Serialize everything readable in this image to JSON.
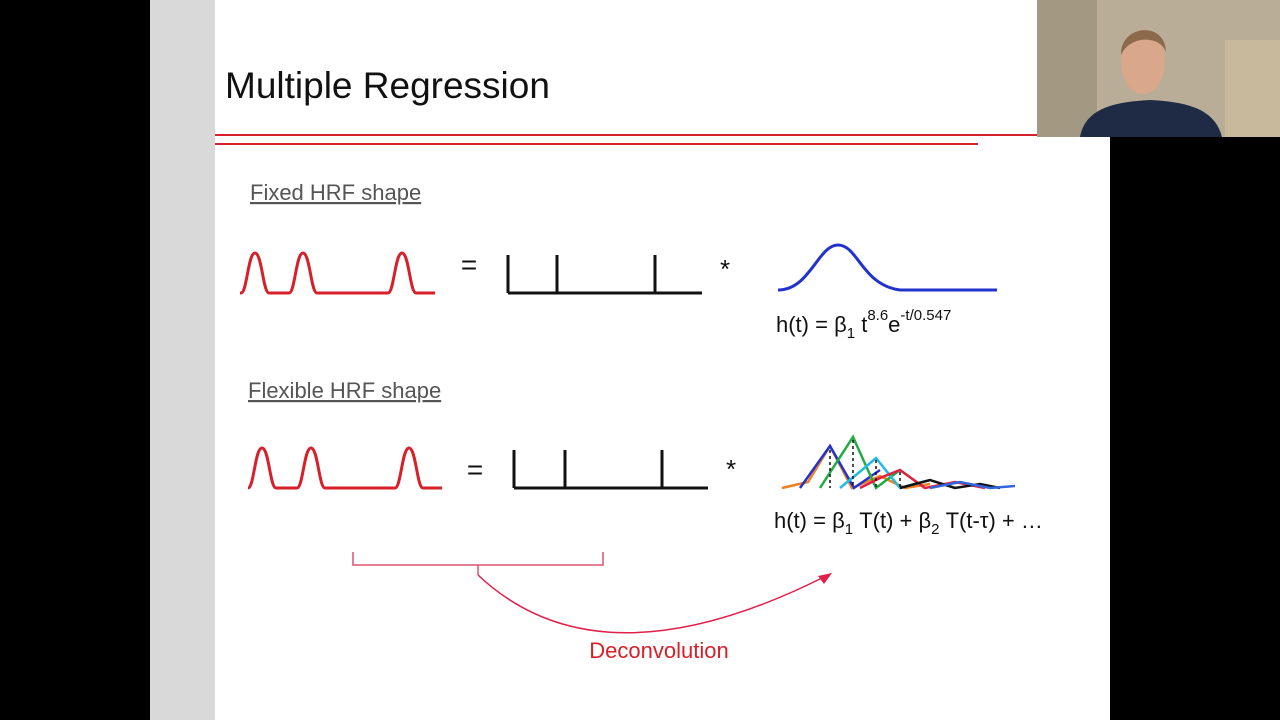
{
  "slide": {
    "title": "Multiple Regression",
    "sections": [
      {
        "heading": "Fixed HRF shape",
        "equals": "=",
        "convolve": "*",
        "formula": [
          "h(t) = β",
          "1",
          " t",
          "8.6",
          "e",
          "-t/0.547"
        ]
      },
      {
        "heading": "Flexible HRF shape",
        "equals": "=",
        "convolve": "*",
        "formula": [
          "h(t) = β",
          "1",
          " T(t) + β",
          "2",
          " T(t-τ) + …"
        ]
      }
    ],
    "annotation": "Deconvolution"
  }
}
